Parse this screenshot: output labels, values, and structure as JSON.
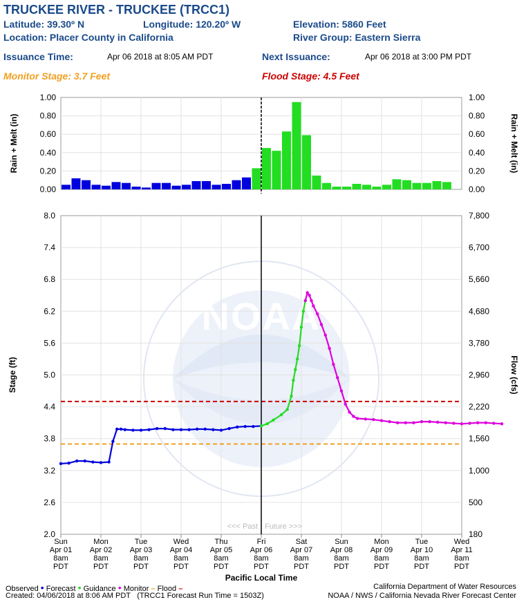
{
  "header": {
    "title": "TRUCKEE RIVER - TRUCKEE (TRCC1)",
    "latitude": "Latitude: 39.30º N",
    "longitude": "Longitude: 120.20º W",
    "elevation": "Elevation: 5860 Feet",
    "location": "Location: Placer County in California",
    "river_group": "River Group: Eastern Sierra",
    "issuance_label": "Issuance Time:",
    "issuance_value": "Apr 06 2018 at 8:05 AM PDT",
    "next_issuance_label": "Next Issuance:",
    "next_issuance_value": "Apr 06 2018 at 3:00 PM PDT",
    "monitor_stage": "Monitor Stage: 3.7 Feet",
    "flood_stage": "Flood Stage: 4.5 Feet"
  },
  "colors": {
    "observed": "#0000dd",
    "guidance": "#22dd22",
    "monitor": "#dd00dd",
    "monitor_line": "#f0a020",
    "flood_line": "#cc0000",
    "header_blue": "#1a4a8a"
  },
  "chart_data": [
    {
      "type": "bar",
      "ylabel_left": "Rain + Melt (in)",
      "ylabel_right": "Rain + Melt (in)",
      "ylim": [
        0,
        1.0
      ],
      "yticks": [
        "0.00",
        "0.20",
        "0.40",
        "0.60",
        "0.80",
        "1.00"
      ],
      "series": [
        {
          "name": "Observed",
          "color": "#0000dd",
          "values": [
            0.05,
            0.12,
            0.1,
            0.05,
            0.04,
            0.08,
            0.07,
            0.03,
            0.02,
            0.07,
            0.07,
            0.04,
            0.05,
            0.09,
            0.09,
            0.05,
            0.06,
            0.1,
            0.13
          ]
        },
        {
          "name": "Forecast",
          "color": "#22dd22",
          "values": [
            0.23,
            0.45,
            0.42,
            0.63,
            0.95,
            0.59,
            0.15,
            0.07,
            0.03,
            0.03,
            0.06,
            0.05,
            0.03,
            0.05,
            0.11,
            0.1,
            0.07,
            0.07,
            0.09,
            0.08
          ]
        }
      ]
    },
    {
      "type": "line",
      "ylabel_left": "Stage (ft)",
      "ylabel_right": "Flow (cfs)",
      "xlabel": "Pacific Local Time",
      "ylim": [
        2.0,
        8.0
      ],
      "yticks_left": [
        "2.0",
        "2.6",
        "3.2",
        "3.8",
        "4.4",
        "5.0",
        "5.6",
        "6.2",
        "6.8",
        "7.4",
        "8.0"
      ],
      "yticks_right": [
        "180",
        "500",
        "1,000",
        "1,560",
        "2,220",
        "2,960",
        "3,780",
        "4,680",
        "5,660",
        "6,700",
        "7,800"
      ],
      "x_categories": [
        [
          "Sun",
          "Apr 01",
          "8am",
          "PDT"
        ],
        [
          "Mon",
          "Apr 02",
          "8am",
          "PDT"
        ],
        [
          "Tue",
          "Apr 03",
          "8am",
          "PDT"
        ],
        [
          "Wed",
          "Apr 04",
          "8am",
          "PDT"
        ],
        [
          "Thu",
          "Apr 05",
          "8am",
          "PDT"
        ],
        [
          "Fri",
          "Apr 06",
          "8am",
          "PDT"
        ],
        [
          "Sat",
          "Apr 07",
          "8am",
          "PDT"
        ],
        [
          "Sun",
          "Apr 08",
          "8am",
          "PDT"
        ],
        [
          "Mon",
          "Apr 09",
          "8am",
          "PDT"
        ],
        [
          "Tue",
          "Apr 10",
          "8am",
          "PDT"
        ],
        [
          "Wed",
          "Apr 11",
          "8am",
          "PDT"
        ]
      ],
      "monitor_stage": 3.7,
      "flood_stage": 4.5,
      "past_label": "<<< Past",
      "future_label": "Future >>>",
      "series": [
        {
          "name": "Observed",
          "color": "#0000dd",
          "x": [
            0,
            0.2,
            0.4,
            0.6,
            0.8,
            1.0,
            1.2,
            1.3,
            1.4,
            1.5,
            1.6,
            1.8,
            2.0,
            2.2,
            2.4,
            2.6,
            2.8,
            3.0,
            3.2,
            3.4,
            3.6,
            3.8,
            4.0,
            4.2,
            4.4,
            4.6,
            4.8,
            5.0
          ],
          "y": [
            3.33,
            3.34,
            3.38,
            3.38,
            3.36,
            3.35,
            3.36,
            3.75,
            3.98,
            3.98,
            3.97,
            3.96,
            3.96,
            3.97,
            3.99,
            3.99,
            3.97,
            3.97,
            3.97,
            3.98,
            3.98,
            3.97,
            3.96,
            3.99,
            4.02,
            4.03,
            4.03,
            4.04
          ]
        },
        {
          "name": "Guidance",
          "color": "#22dd22",
          "x": [
            5.0,
            5.15,
            5.3,
            5.5,
            5.65,
            5.75,
            5.8,
            5.85,
            5.9,
            5.95,
            6.0,
            6.05,
            6.1
          ],
          "y": [
            4.04,
            4.08,
            4.15,
            4.25,
            4.35,
            4.6,
            4.9,
            5.1,
            5.3,
            5.55,
            5.9,
            6.2,
            6.4
          ]
        },
        {
          "name": "Monitor",
          "color": "#dd00dd",
          "x": [
            6.1,
            6.15,
            6.2,
            6.25,
            6.3,
            6.4,
            6.5,
            6.6,
            6.7,
            6.8,
            6.9,
            7.0,
            7.1,
            7.2,
            7.3,
            7.4,
            7.6,
            7.8,
            8.0,
            8.2,
            8.4,
            8.6,
            8.8,
            9.0,
            9.2,
            9.4,
            9.6,
            9.8,
            10.0,
            10.2,
            10.4,
            10.6,
            10.8,
            11.0
          ],
          "y": [
            6.4,
            6.55,
            6.5,
            6.4,
            6.3,
            6.15,
            5.95,
            5.75,
            5.5,
            5.2,
            4.95,
            4.7,
            4.45,
            4.3,
            4.22,
            4.18,
            4.17,
            4.16,
            4.14,
            4.12,
            4.1,
            4.1,
            4.1,
            4.12,
            4.12,
            4.11,
            4.1,
            4.09,
            4.08,
            4.09,
            4.1,
            4.1,
            4.09,
            4.08
          ]
        }
      ]
    }
  ],
  "legend": {
    "observed": "Observed",
    "forecast": "Forecast",
    "guidance": "Guidance",
    "monitor": "Monitor",
    "flood": "Flood"
  },
  "footer": {
    "created": "Created: 04/06/2018 at 8:06 AM PDT",
    "run_time": "(TRCC1 Forecast Run Time = 1503Z)",
    "dwr": "California Department of Water Resources",
    "noaa": "NOAA / NWS / California Nevada River Forecast Center"
  }
}
